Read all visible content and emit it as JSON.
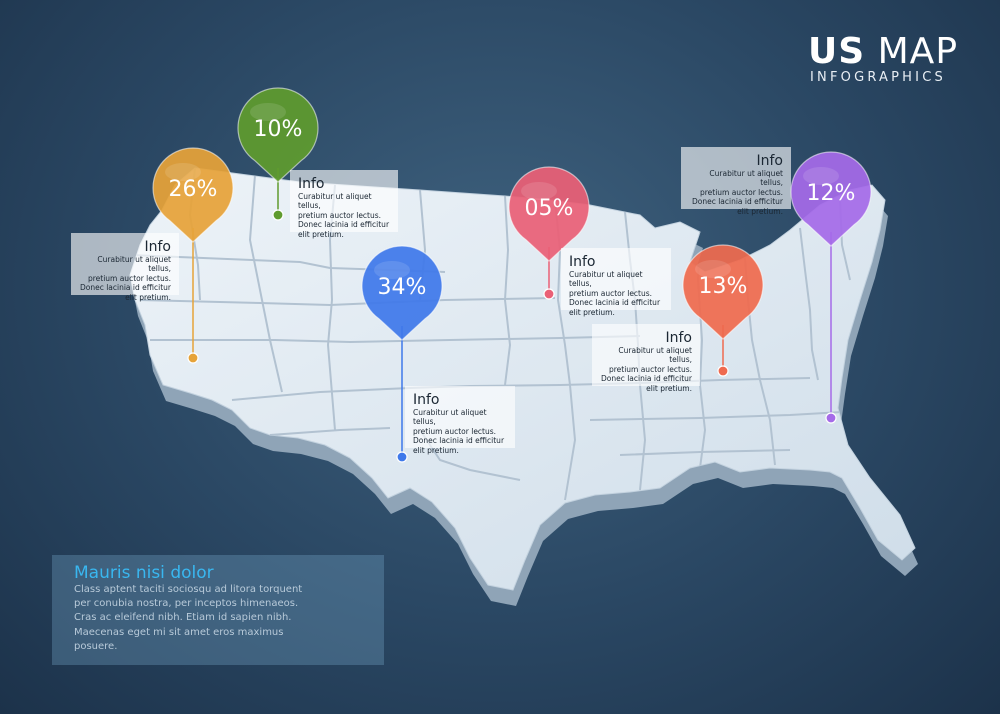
{
  "header": {
    "title_bold": "US",
    "title_rest": "MAP",
    "subtitle": "INFOGRAPHICS"
  },
  "pins": [
    {
      "label": "10%",
      "color": "#5f9b2e"
    },
    {
      "label": "26%",
      "color": "#e6a339"
    },
    {
      "label": "34%",
      "color": "#3f79ea"
    },
    {
      "label": "05%",
      "color": "#ea6076"
    },
    {
      "label": "13%",
      "color": "#ef6a4f"
    },
    {
      "label": "12%",
      "color": "#a56be8"
    }
  ],
  "info_boxes": [
    {
      "title": "Info",
      "lines": [
        "Curabitur ut aliquet tellus,",
        "pretium auctor lectus.",
        "Donec lacinia id efficitur",
        "elit pretium."
      ]
    },
    {
      "title": "Info",
      "lines": [
        "Curabitur ut aliquet tellus,",
        "pretium auctor lectus.",
        "Donec lacinia id efficitur",
        "elit pretium."
      ]
    },
    {
      "title": "Info",
      "lines": [
        "Curabitur ut aliquet tellus,",
        "pretium auctor lectus.",
        "Donec lacinia id efficitur",
        "elit pretium."
      ]
    },
    {
      "title": "Info",
      "lines": [
        "Curabitur ut aliquet tellus,",
        "pretium auctor lectus.",
        "Donec lacinia id efficitur",
        "elit pretium."
      ]
    },
    {
      "title": "Info",
      "lines": [
        "Curabitur ut aliquet tellus,",
        "pretium auctor lectus.",
        "Donec lacinia id efficitur",
        "elit pretium."
      ]
    },
    {
      "title": "Info",
      "lines": [
        "Curabitur ut aliquet tellus,",
        "pretium auctor lectus.",
        "Donec lacinia id efficitur",
        "elit pretium."
      ]
    }
  ],
  "note": {
    "title": "Mauris nisi dolor",
    "lines": [
      "Class aptent taciti sociosqu ad litora torquent",
      "per conubia nostra, per inceptos himenaeos.",
      "Cras ac eleifend nibh. Etiam id sapien nibh.",
      "Maecenas eget mi sit amet eros maximus",
      "posuere."
    ]
  },
  "colors": {
    "map_fill": "#dfe9f2",
    "map_side": "#8fa4b7",
    "map_border": "#b2c2d1",
    "background": "#2e4b66"
  }
}
